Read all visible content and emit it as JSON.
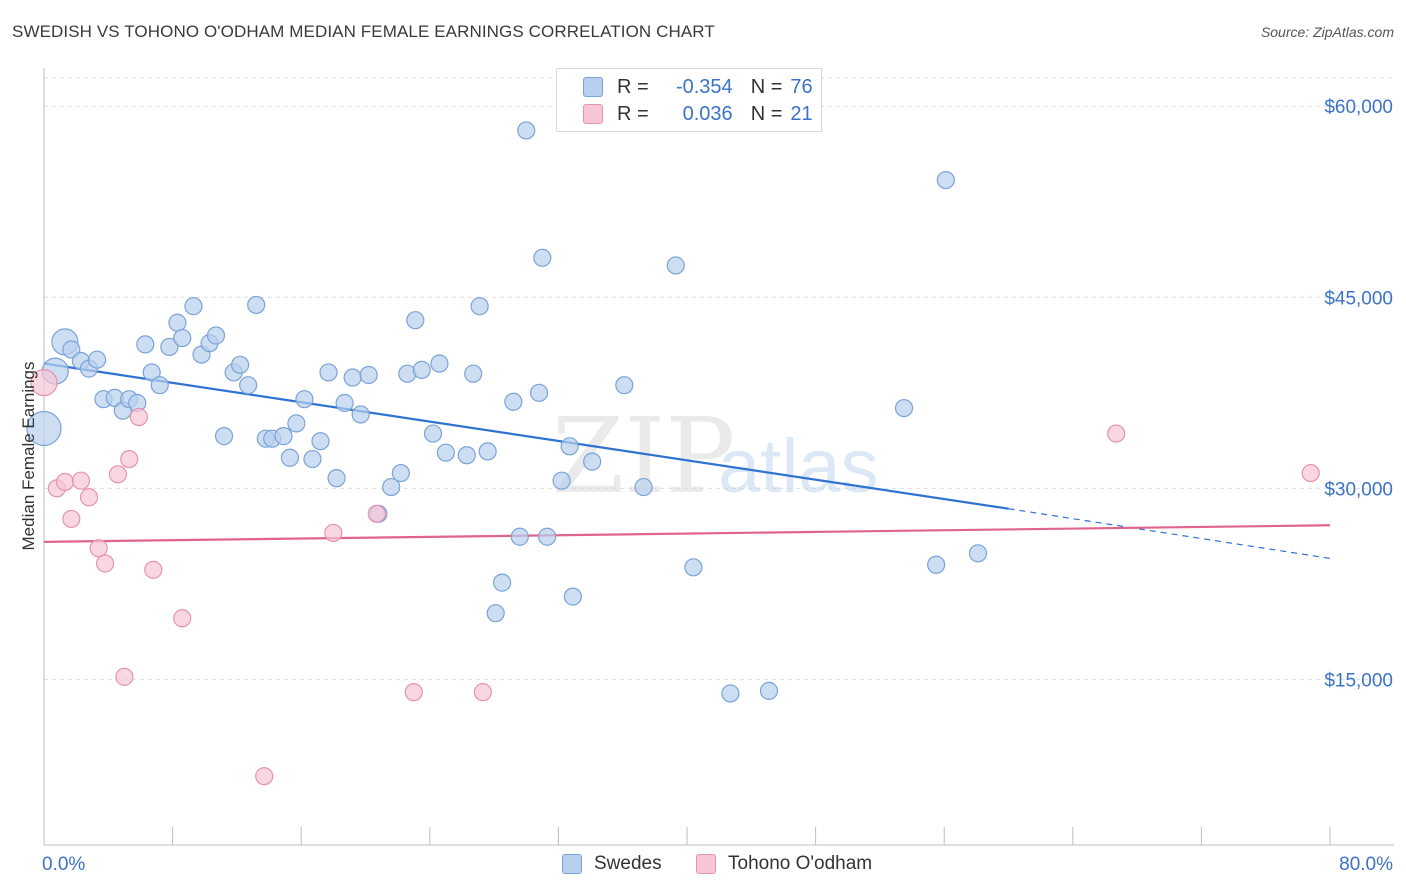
{
  "title": "SWEDISH VS TOHONO O'ODHAM MEDIAN FEMALE EARNINGS CORRELATION CHART",
  "source": "Source: ZipAtlas.com",
  "watermark": {
    "zip": "ZIP",
    "atlas": "atlas"
  },
  "legend": {
    "rows": [
      {
        "r_label": "R =",
        "r_value": "-0.354",
        "n_label": "N =",
        "n_value": "76"
      },
      {
        "r_label": "R =",
        "r_value": "0.036",
        "n_label": "N =",
        "n_value": "21"
      }
    ]
  },
  "bottom_legend": {
    "swedes": "Swedes",
    "tohono": "Tohono O'odham"
  },
  "colors": {
    "blue_fill": "#b8d0ee",
    "blue_stroke": "#7aa3d8",
    "blue_line": "#2e72d2",
    "pink_fill": "#f7c6d4",
    "pink_stroke": "#e693ad",
    "pink_line": "#e0648b",
    "grid": "#dedede",
    "axis_text": "#3b73c8"
  },
  "chart_data": {
    "type": "scatter",
    "title": "SWEDISH VS TOHONO O'ODHAM MEDIAN FEMALE EARNINGS CORRELATION CHART",
    "xlabel": "",
    "ylabel": "Median Female Earnings",
    "xlim": [
      0,
      80
    ],
    "ylim": [
      2000,
      63000
    ],
    "x_tick_labels": [
      "0.0%",
      "80.0%"
    ],
    "y_ticks": [
      15000,
      30000,
      45000,
      60000
    ],
    "y_tick_labels": [
      "$15,000",
      "$30,000",
      "$45,000",
      "$60,000"
    ],
    "grid": true,
    "legend_position": "top-center",
    "series": [
      {
        "name": "Swedes",
        "R": -0.354,
        "N": 76,
        "trend": {
          "x0": 0,
          "y0": 39800,
          "x1": 60,
          "y1": 28400,
          "dashed_to_x": 80,
          "dashed_to_y": 24500
        },
        "points": [
          [
            0.0,
            34700,
            "large"
          ],
          [
            0.7,
            39200,
            "medium"
          ],
          [
            1.3,
            41500,
            "medium"
          ],
          [
            1.7,
            40900,
            "small"
          ],
          [
            2.3,
            40000,
            "small"
          ],
          [
            2.8,
            39400,
            "small"
          ],
          [
            3.3,
            40100,
            "small"
          ],
          [
            3.7,
            37000,
            "small"
          ],
          [
            4.4,
            37100,
            "small"
          ],
          [
            4.9,
            36100,
            "small"
          ],
          [
            5.3,
            37000,
            "small"
          ],
          [
            5.8,
            36700,
            "small"
          ],
          [
            6.3,
            41300,
            "small"
          ],
          [
            6.7,
            39100,
            "small"
          ],
          [
            7.2,
            38100,
            "small"
          ],
          [
            7.8,
            41100,
            "small"
          ],
          [
            8.3,
            43000,
            "small"
          ],
          [
            8.6,
            41800,
            "small"
          ],
          [
            9.3,
            44300,
            "small"
          ],
          [
            9.8,
            40500,
            "small"
          ],
          [
            10.3,
            41400,
            "small"
          ],
          [
            10.7,
            42000,
            "small"
          ],
          [
            11.2,
            34100,
            "small"
          ],
          [
            11.8,
            39100,
            "small"
          ],
          [
            12.2,
            39700,
            "small"
          ],
          [
            12.7,
            38100,
            "small"
          ],
          [
            13.2,
            44400,
            "small"
          ],
          [
            13.8,
            33900,
            "small"
          ],
          [
            14.2,
            33900,
            "small"
          ],
          [
            14.9,
            34100,
            "small"
          ],
          [
            15.3,
            32400,
            "small"
          ],
          [
            15.7,
            35100,
            "small"
          ],
          [
            16.2,
            37000,
            "small"
          ],
          [
            16.7,
            32300,
            "small"
          ],
          [
            17.2,
            33700,
            "small"
          ],
          [
            17.7,
            39100,
            "small"
          ],
          [
            18.2,
            30800,
            "small"
          ],
          [
            18.7,
            36700,
            "small"
          ],
          [
            19.2,
            38700,
            "small"
          ],
          [
            19.7,
            35800,
            "small"
          ],
          [
            20.2,
            38900,
            "small"
          ],
          [
            20.8,
            28000,
            "small"
          ],
          [
            21.6,
            30100,
            "small"
          ],
          [
            22.2,
            31200,
            "small"
          ],
          [
            22.6,
            39000,
            "small"
          ],
          [
            23.1,
            43200,
            "small"
          ],
          [
            23.5,
            39300,
            "small"
          ],
          [
            24.2,
            34300,
            "small"
          ],
          [
            24.6,
            39800,
            "small"
          ],
          [
            25.0,
            32800,
            "small"
          ],
          [
            26.3,
            32600,
            "small"
          ],
          [
            26.7,
            39000,
            "small"
          ],
          [
            27.1,
            44300,
            "small"
          ],
          [
            27.6,
            32900,
            "small"
          ],
          [
            28.1,
            20200,
            "small"
          ],
          [
            28.5,
            22600,
            "small"
          ],
          [
            29.2,
            36800,
            "small"
          ],
          [
            29.6,
            26200,
            "small"
          ],
          [
            30.0,
            58100,
            "small"
          ],
          [
            30.8,
            37500,
            "small"
          ],
          [
            31.0,
            48100,
            "small"
          ],
          [
            31.3,
            26200,
            "small"
          ],
          [
            32.2,
            30600,
            "small"
          ],
          [
            32.7,
            33300,
            "small"
          ],
          [
            32.9,
            21500,
            "small"
          ],
          [
            34.1,
            32100,
            "small"
          ],
          [
            36.1,
            38100,
            "small"
          ],
          [
            37.3,
            30100,
            "small"
          ],
          [
            39.3,
            47500,
            "small"
          ],
          [
            40.4,
            23800,
            "small"
          ],
          [
            42.7,
            13900,
            "small"
          ],
          [
            45.1,
            14100,
            "small"
          ],
          [
            53.5,
            36300,
            "small"
          ],
          [
            55.5,
            24000,
            "small"
          ],
          [
            56.1,
            54200,
            "small"
          ],
          [
            58.1,
            24900,
            "small"
          ]
        ]
      },
      {
        "name": "Tohono O'odham",
        "R": 0.036,
        "N": 21,
        "trend": {
          "x0": 0,
          "y0": 25800,
          "x1": 80,
          "y1": 27100
        },
        "points": [
          [
            0.0,
            38300,
            "medium"
          ],
          [
            0.8,
            30000,
            "small"
          ],
          [
            1.3,
            30500,
            "small"
          ],
          [
            1.7,
            27600,
            "small"
          ],
          [
            2.3,
            30600,
            "small"
          ],
          [
            2.8,
            29300,
            "small"
          ],
          [
            3.4,
            25300,
            "small"
          ],
          [
            3.8,
            24100,
            "small"
          ],
          [
            4.6,
            31100,
            "small"
          ],
          [
            5.0,
            15200,
            "small"
          ],
          [
            5.3,
            32300,
            "small"
          ],
          [
            5.9,
            35600,
            "small"
          ],
          [
            6.8,
            23600,
            "small"
          ],
          [
            8.6,
            19800,
            "small"
          ],
          [
            13.7,
            7400,
            "small"
          ],
          [
            18.0,
            26500,
            "small"
          ],
          [
            20.7,
            28000,
            "small"
          ],
          [
            23.0,
            14000,
            "small"
          ],
          [
            27.3,
            14000,
            "small"
          ],
          [
            66.7,
            34300,
            "small"
          ],
          [
            78.8,
            31200,
            "small"
          ]
        ]
      }
    ]
  }
}
